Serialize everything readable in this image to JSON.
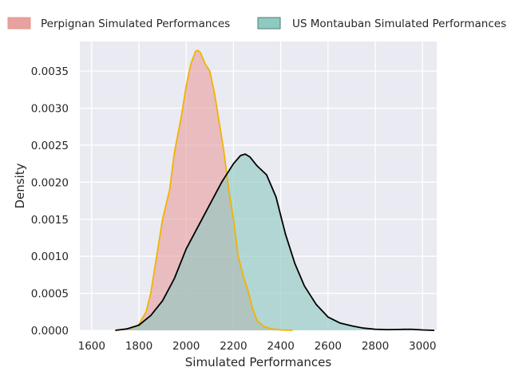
{
  "chart_data": {
    "type": "area",
    "title": "",
    "xlabel": "Simulated Performances",
    "ylabel": "Density",
    "xlim": [
      1550,
      3060
    ],
    "ylim": [
      0,
      0.0039
    ],
    "xticks": [
      1600,
      1800,
      2000,
      2200,
      2400,
      2600,
      2800,
      3000
    ],
    "xtick_labels": [
      "1600",
      "1800",
      "2000",
      "2200",
      "2400",
      "2600",
      "2800",
      "3000"
    ],
    "yticks": [
      0,
      0.0005,
      0.001,
      0.0015,
      0.002,
      0.0025,
      0.003,
      0.0035
    ],
    "ytick_labels": [
      "0.0000",
      "0.0005",
      "0.0010",
      "0.0015",
      "0.0020",
      "0.0025",
      "0.0030",
      "0.0035"
    ],
    "grid": true,
    "legend_position": "top",
    "series": [
      {
        "name": "Perpignan Simulated Performances",
        "fill_color": "#e8a0a0",
        "line_color": "#f0b400",
        "x": [
          1700,
          1750,
          1780,
          1800,
          1830,
          1850,
          1880,
          1900,
          1930,
          1950,
          1980,
          2000,
          2020,
          2040,
          2050,
          2060,
          2080,
          2100,
          2120,
          2140,
          2160,
          2180,
          2200,
          2220,
          2240,
          2260,
          2280,
          2300,
          2330,
          2360,
          2400,
          2450
        ],
        "y": [
          0.0,
          2e-05,
          4e-05,
          8e-05,
          0.00025,
          0.0005,
          0.0011,
          0.0015,
          0.0019,
          0.0024,
          0.0029,
          0.0033,
          0.0036,
          0.00377,
          0.00378,
          0.00375,
          0.0036,
          0.0035,
          0.0032,
          0.0028,
          0.0024,
          0.0019,
          0.0015,
          0.001,
          0.00075,
          0.00055,
          0.0003,
          0.00013,
          5e-05,
          2e-05,
          5e-06,
          0.0
        ]
      },
      {
        "name": "US Montauban Simulated Performances",
        "fill_color": "#8ecac0",
        "line_color": "#000000",
        "x": [
          1700,
          1750,
          1800,
          1850,
          1900,
          1950,
          2000,
          2050,
          2100,
          2150,
          2200,
          2230,
          2250,
          2270,
          2300,
          2340,
          2380,
          2420,
          2460,
          2500,
          2550,
          2600,
          2650,
          2700,
          2750,
          2800,
          2850,
          2900,
          2950,
          3000,
          3050
        ],
        "y": [
          0.0,
          2e-05,
          7e-05,
          0.0002,
          0.0004,
          0.0007,
          0.0011,
          0.0014,
          0.0017,
          0.002,
          0.00225,
          0.00236,
          0.00238,
          0.00234,
          0.00222,
          0.0021,
          0.0018,
          0.0013,
          0.0009,
          0.0006,
          0.00035,
          0.00018,
          0.0001,
          6e-05,
          3e-05,
          1.5e-05,
          1e-05,
          1.2e-05,
          1.5e-05,
          5e-06,
          0.0
        ]
      }
    ]
  }
}
